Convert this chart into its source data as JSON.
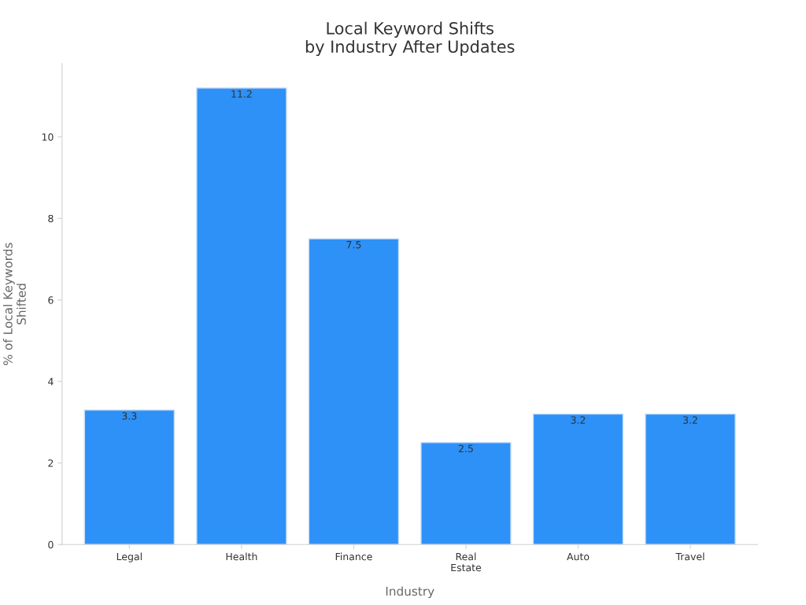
{
  "chart_data": {
    "type": "bar",
    "title": "Local Keyword Shifts\nby Industry After Updates",
    "xlabel": "Industry",
    "ylabel": "% of Local Keywords\nShifted",
    "categories": [
      "Legal",
      "Health",
      "Finance",
      "Real\nEstate",
      "Auto",
      "Travel"
    ],
    "values": [
      3.3,
      11.2,
      7.5,
      2.5,
      3.2,
      3.2
    ],
    "color": "#2d91f7",
    "ylim": [
      0,
      11.8
    ],
    "yticks": [
      0,
      2,
      4,
      6,
      8,
      10
    ],
    "data_labels": true,
    "grid": false,
    "legend": false
  }
}
